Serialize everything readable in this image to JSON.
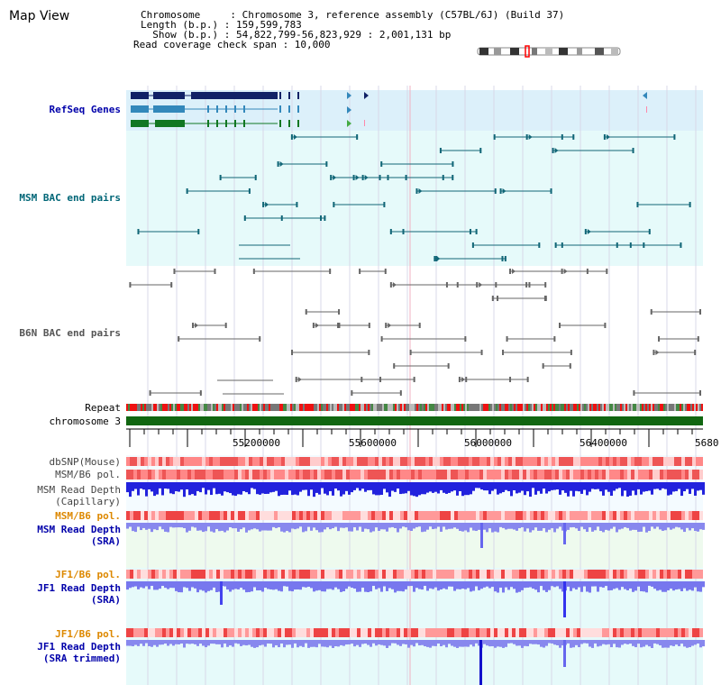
{
  "app": {
    "title": "Map View"
  },
  "info": {
    "chromosome_line": "Chromosome     : Chromosome 3, reference assembly (C57BL/6J) (Build 37)",
    "length_line": "Length (b.p.) : 159,599,783",
    "show_line": "  Show (b.p.) : 54,822,799-56,823,929 : 2,001,131 bp",
    "coverage_line": "Read coverage check span : 10,000"
  },
  "tracks": {
    "refseq": {
      "label": "RefSeq Genes",
      "color": "#0000aa"
    },
    "msm_bac": {
      "label": "MSM BAC end pairs",
      "color": "#006677"
    },
    "b6n_bac": {
      "label": "B6N BAC end pairs",
      "color": "#555555"
    },
    "repeat": {
      "label": "Repeat"
    },
    "chromosome": {
      "label": "chromosome 3",
      "color": "#006600"
    },
    "dbsnp": {
      "label": "dbSNP(Mouse)"
    },
    "msm_b6_pol_1": {
      "label": "MSM/B6 pol."
    },
    "msm_depth_cap": {
      "label1": "MSM Read Depth",
      "label2": "(Capillary)"
    },
    "msm_b6_pol_2": {
      "label": "MSM/B6 pol.",
      "color": "#dd8800"
    },
    "msm_depth_sra": {
      "label1": "MSM Read Depth",
      "label2": "(SRA)",
      "color": "#0000aa"
    },
    "jf1_b6_pol_1": {
      "label": "JF1/B6 pol.",
      "color": "#dd8800"
    },
    "jf1_depth_sra": {
      "label1": "JF1 Read Depth",
      "label2": "(SRA)",
      "color": "#0000aa"
    },
    "jf1_b6_pol_2": {
      "label": "JF1/B6 pol.",
      "color": "#dd8800"
    },
    "jf1_depth_trim": {
      "label1": "JF1 Read Depth",
      "label2": "(SRA trimmed)",
      "color": "#0000aa"
    }
  },
  "ruler": {
    "ticks": [
      "55200000",
      "55600000",
      "56000000",
      "56400000",
      "5680"
    ]
  },
  "colors": {
    "refseq_bg": "#dcf0fa",
    "bac_bg": "#e6fafa",
    "pale_green": "#eefaee",
    "pale_cyan": "#e6fafa",
    "red": "#dd2222",
    "blue": "#2222ee",
    "lavender": "#8888ee"
  }
}
